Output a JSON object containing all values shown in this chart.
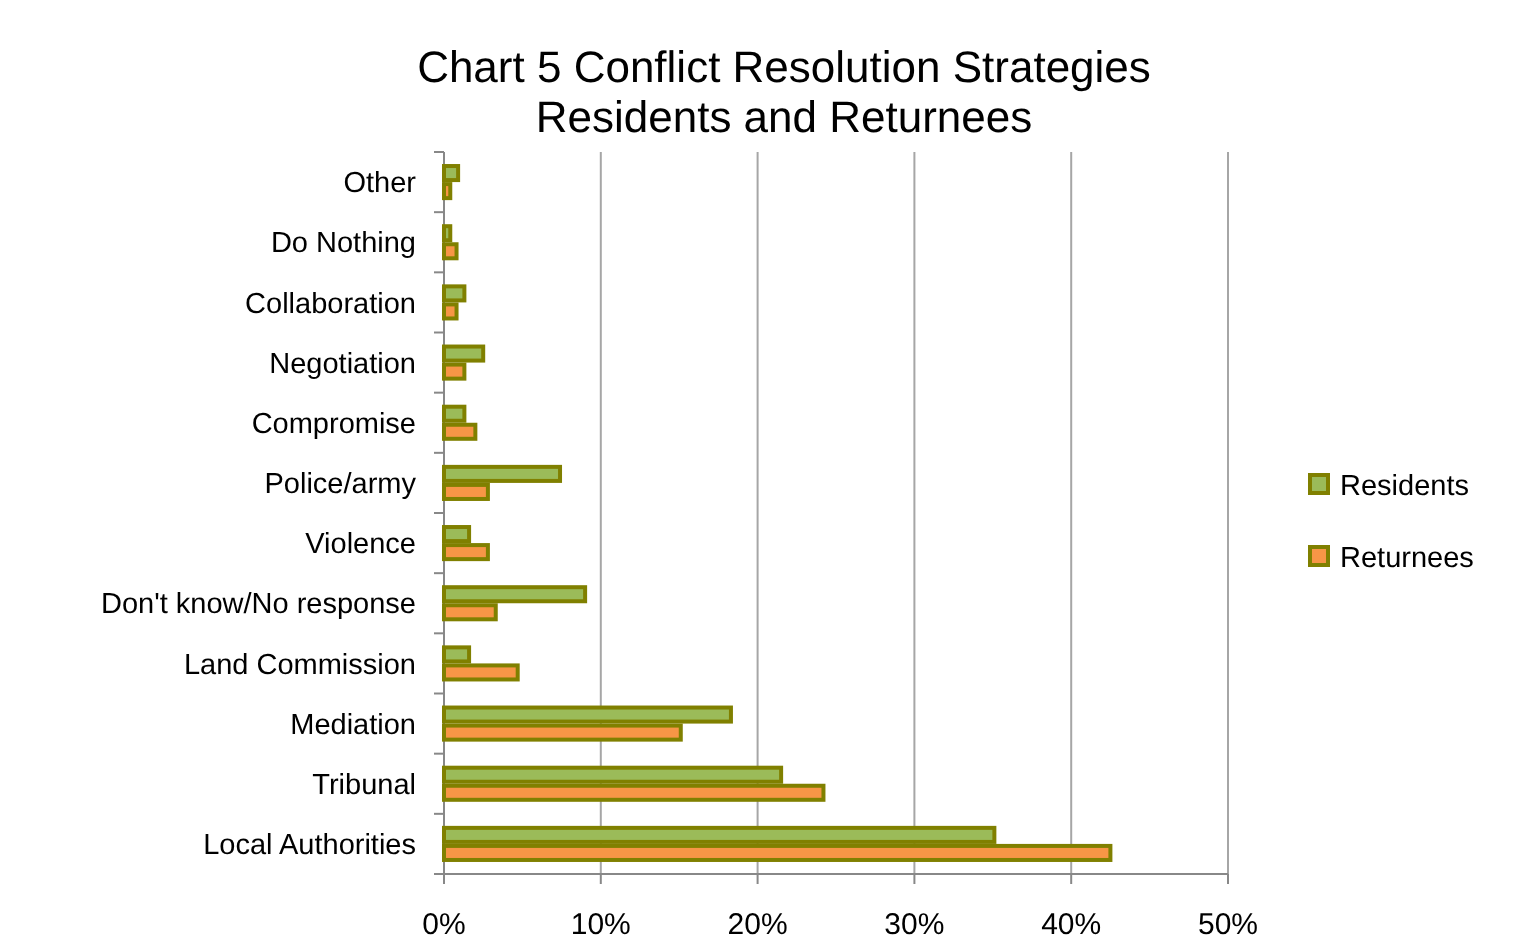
{
  "chart_data": {
    "type": "bar",
    "orientation": "horizontal",
    "title": "Chart 5 Conflict Resolution Strategies\nResidents and Returnees",
    "categories": [
      "Other",
      "Do Nothing",
      "Collaboration",
      "Negotiation",
      "Compromise",
      "Police/army",
      "Violence",
      "Don't know/No response",
      "Land Commission",
      "Mediation",
      "Tribunal",
      "Local Authorities"
    ],
    "series": [
      {
        "name": "Residents",
        "color": "#9bbb59",
        "values": [
          0.9,
          0.4,
          1.3,
          2.5,
          1.3,
          7.4,
          1.6,
          9.0,
          1.6,
          18.3,
          21.5,
          35.1
        ]
      },
      {
        "name": "Returnees",
        "color": "#f79646",
        "values": [
          0.4,
          0.8,
          0.8,
          1.3,
          2.0,
          2.8,
          2.8,
          3.3,
          4.7,
          15.1,
          24.2,
          42.5
        ]
      }
    ],
    "xlim": [
      0,
      50
    ],
    "xticks": [
      {
        "value": 0,
        "label": "0%"
      },
      {
        "value": 10,
        "label": "10%"
      },
      {
        "value": 20,
        "label": "20%"
      },
      {
        "value": 30,
        "label": "30%"
      },
      {
        "value": 40,
        "label": "40%"
      },
      {
        "value": 50,
        "label": "50%"
      }
    ],
    "grid": "x",
    "legend": "right"
  }
}
